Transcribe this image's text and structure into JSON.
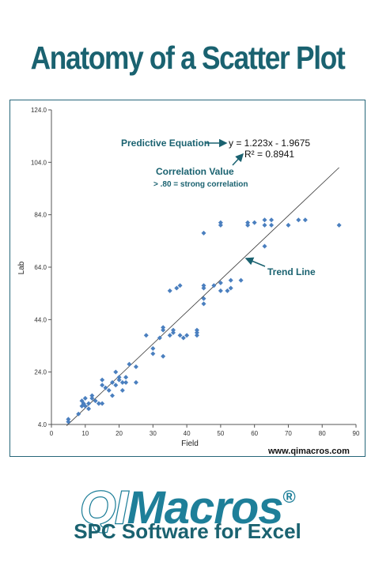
{
  "page": {
    "headline": "Anatomy of a Scatter Plot",
    "logo_part1": "QI",
    "logo_part2": "Macros",
    "logo_mark": "®",
    "tagline": "SPC Software for Excel",
    "accent_color": "#1a6270",
    "logo_color": "#1e7f99"
  },
  "chart_data": {
    "type": "scatter",
    "title": "",
    "xlabel": "Field",
    "ylabel": "Lab",
    "xlim": [
      0,
      90
    ],
    "ylim": [
      4.0,
      124.0
    ],
    "xticks": [
      "0",
      "10",
      "20",
      "30",
      "40",
      "50",
      "60",
      "70",
      "80",
      "90"
    ],
    "yticks": [
      "4.0",
      "24.0",
      "44.0",
      "64.0",
      "84.0",
      "104.0",
      "124.0"
    ],
    "grid": false,
    "marker_color": "#4a7fbf",
    "trend_line": {
      "slope": 1.223,
      "intercept": -1.9675,
      "x_range": [
        4.5,
        85
      ]
    },
    "annotations": {
      "equation_label": "Predictive Equation",
      "equation": "y = 1.223x - 1.9675",
      "r_squared": "R² = 0.8941",
      "correlation_label": "Correlation Value",
      "correlation_note": "> .80 = strong correlation",
      "trend_label": "Trend Line",
      "website": "www.qimacros.com",
      "annotation_color": "#1a6270"
    },
    "points": [
      {
        "x": 5,
        "y": 6
      },
      {
        "x": 5,
        "y": 5
      },
      {
        "x": 8,
        "y": 8
      },
      {
        "x": 9,
        "y": 11
      },
      {
        "x": 9,
        "y": 13
      },
      {
        "x": 9.5,
        "y": 12
      },
      {
        "x": 10,
        "y": 14
      },
      {
        "x": 10,
        "y": 11
      },
      {
        "x": 11,
        "y": 10
      },
      {
        "x": 11,
        "y": 12
      },
      {
        "x": 12,
        "y": 15
      },
      {
        "x": 12,
        "y": 14
      },
      {
        "x": 13,
        "y": 13
      },
      {
        "x": 14,
        "y": 12
      },
      {
        "x": 15,
        "y": 12
      },
      {
        "x": 15,
        "y": 19
      },
      {
        "x": 15,
        "y": 21
      },
      {
        "x": 16,
        "y": 18
      },
      {
        "x": 17,
        "y": 17
      },
      {
        "x": 18,
        "y": 15
      },
      {
        "x": 18,
        "y": 20
      },
      {
        "x": 19,
        "y": 19
      },
      {
        "x": 19,
        "y": 24
      },
      {
        "x": 20,
        "y": 21
      },
      {
        "x": 20,
        "y": 22
      },
      {
        "x": 21,
        "y": 20
      },
      {
        "x": 21,
        "y": 17
      },
      {
        "x": 22,
        "y": 20
      },
      {
        "x": 22,
        "y": 22
      },
      {
        "x": 23,
        "y": 27
      },
      {
        "x": 25,
        "y": 26
      },
      {
        "x": 25,
        "y": 20
      },
      {
        "x": 28,
        "y": 38
      },
      {
        "x": 30,
        "y": 33
      },
      {
        "x": 30,
        "y": 31
      },
      {
        "x": 32,
        "y": 37
      },
      {
        "x": 33,
        "y": 40
      },
      {
        "x": 33,
        "y": 41
      },
      {
        "x": 33,
        "y": 30
      },
      {
        "x": 35,
        "y": 38
      },
      {
        "x": 35,
        "y": 55
      },
      {
        "x": 36,
        "y": 39
      },
      {
        "x": 36,
        "y": 40
      },
      {
        "x": 37,
        "y": 56
      },
      {
        "x": 38,
        "y": 57
      },
      {
        "x": 38,
        "y": 38
      },
      {
        "x": 39,
        "y": 37
      },
      {
        "x": 40,
        "y": 38
      },
      {
        "x": 43,
        "y": 39
      },
      {
        "x": 43,
        "y": 38
      },
      {
        "x": 43,
        "y": 40
      },
      {
        "x": 45,
        "y": 56
      },
      {
        "x": 45,
        "y": 57
      },
      {
        "x": 45,
        "y": 50
      },
      {
        "x": 45,
        "y": 52
      },
      {
        "x": 45,
        "y": 77
      },
      {
        "x": 48,
        "y": 57
      },
      {
        "x": 50,
        "y": 55
      },
      {
        "x": 50,
        "y": 58
      },
      {
        "x": 50,
        "y": 80
      },
      {
        "x": 50,
        "y": 81
      },
      {
        "x": 52,
        "y": 55
      },
      {
        "x": 53,
        "y": 56
      },
      {
        "x": 53,
        "y": 59
      },
      {
        "x": 56,
        "y": 59
      },
      {
        "x": 58,
        "y": 80
      },
      {
        "x": 58,
        "y": 81
      },
      {
        "x": 60,
        "y": 81
      },
      {
        "x": 63,
        "y": 72
      },
      {
        "x": 63,
        "y": 80
      },
      {
        "x": 63,
        "y": 82
      },
      {
        "x": 65,
        "y": 80
      },
      {
        "x": 65,
        "y": 82
      },
      {
        "x": 70,
        "y": 80
      },
      {
        "x": 73,
        "y": 82
      },
      {
        "x": 75,
        "y": 82
      },
      {
        "x": 85,
        "y": 80
      }
    ]
  }
}
